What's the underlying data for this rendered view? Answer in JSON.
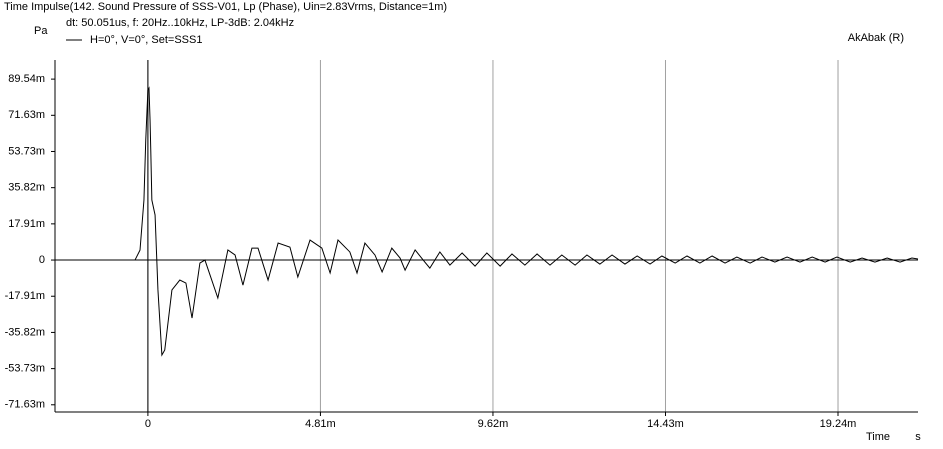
{
  "chart_data": {
    "type": "line",
    "title": "Time Impulse(142. Sound Pressure of SSS-V01, Lp (Phase), Uin=2.83Vrms, Distance=1m)",
    "subtitle": "dt: 50.051us, f: 20Hz..10kHz, LP-3dB: 2.04kHz",
    "brand": "AkAbak (R)",
    "y_unit": "Pa",
    "x_label": "Time",
    "x_unit": "s",
    "grid": true,
    "x": [
      -0.00176,
      -0.00036,
      -0.00022,
      -0.00011,
      -6e-05,
      0,
      3e-05,
      6e-05,
      8e-05,
      0.00011,
      0.0002,
      0.00028,
      0.00039,
      0.00047,
      0.00067,
      0.00089,
      0.00106,
      0.00123,
      0.00145,
      0.00159,
      0.00195,
      0.00223,
      0.00243,
      0.00265,
      0.0029,
      0.00307,
      0.00335,
      0.00363,
      0.00396,
      0.00418,
      0.00452,
      0.00485,
      0.00508,
      0.0053,
      0.00563,
      0.00583,
      0.00605,
      0.00633,
      0.00653,
      0.0068,
      0.00703,
      0.00717,
      0.00745,
      0.00772,
      0.00786,
      0.00814,
      0.00842,
      0.00876,
      0.00912,
      0.00945,
      0.00982,
      0.01015,
      0.01051,
      0.01085,
      0.01121,
      0.01154,
      0.01191,
      0.01224,
      0.0126,
      0.01294,
      0.0133,
      0.01364,
      0.014,
      0.01433,
      0.0147,
      0.01503,
      0.01539,
      0.01573,
      0.01609,
      0.01642,
      0.01679,
      0.01712,
      0.01748,
      0.01782,
      0.01818,
      0.01852,
      0.01888,
      0.01921,
      0.01958,
      0.01991,
      0.02027,
      0.02061,
      0.02097,
      0.0213,
      0.02147
    ],
    "series": [
      {
        "name": "H=0°, V=0°, Set=SSS1",
        "color": "#000000",
        "values": [
          0,
          0,
          0.0049,
          0.0297,
          0.0594,
          0.0841,
          0.0851,
          0.0693,
          0.0544,
          0.0297,
          0.0223,
          -0.0148,
          -0.047,
          -0.0445,
          -0.0148,
          -0.0099,
          -0.0114,
          -0.0287,
          -0.0015,
          0,
          -0.0188,
          0.005,
          0.0025,
          -0.0124,
          0.0059,
          0.0059,
          -0.0099,
          0.0084,
          0.0064,
          -0.0084,
          0.0099,
          0.0059,
          -0.0064,
          0.0099,
          0.004,
          -0.0064,
          0.0084,
          0.0025,
          -0.0059,
          0.0059,
          0.001,
          -0.005,
          0.005,
          -0.001,
          -0.004,
          0.004,
          -0.0025,
          0.0035,
          -0.003,
          0.0035,
          -0.003,
          0.003,
          -0.0025,
          0.003,
          -0.0025,
          0.0025,
          -0.0025,
          0.0025,
          -0.002,
          0.0025,
          -0.002,
          0.002,
          -0.002,
          0.002,
          -0.0015,
          0.002,
          -0.0015,
          0.002,
          -0.0015,
          0.0015,
          -0.0015,
          0.0015,
          -0.001,
          0.0015,
          -0.001,
          0.0015,
          -0.001,
          0.0015,
          -0.001,
          0.001,
          -0.001,
          0.001,
          -0.001,
          0.001,
          0.0005
        ]
      }
    ],
    "xlim": [
      -0.00259,
      0.02147
    ],
    "ylim": [
      -0.0752,
      0.099
    ],
    "xticks": [
      0,
      {
        "value": 0.00481,
        "label": "4.81m"
      },
      {
        "value": 0.00962,
        "label": "9.62m"
      },
      {
        "value": 0.01443,
        "label": "14.43m"
      },
      {
        "value": 0.01924,
        "label": "19.24m"
      }
    ],
    "yticks": [
      {
        "value": 0.08954,
        "label": "89.54m"
      },
      {
        "value": 0.07163,
        "label": "71.63m"
      },
      {
        "value": 0.05373,
        "label": "53.73m"
      },
      {
        "value": 0.03582,
        "label": "35.82m"
      },
      {
        "value": 0.01791,
        "label": "17.91m"
      },
      0,
      {
        "value": -0.01791,
        "label": "-17.91m"
      },
      {
        "value": -0.03582,
        "label": "-35.82m"
      },
      {
        "value": -0.05373,
        "label": "-53.73m"
      },
      {
        "value": -0.07163,
        "label": "-71.63m"
      }
    ]
  }
}
